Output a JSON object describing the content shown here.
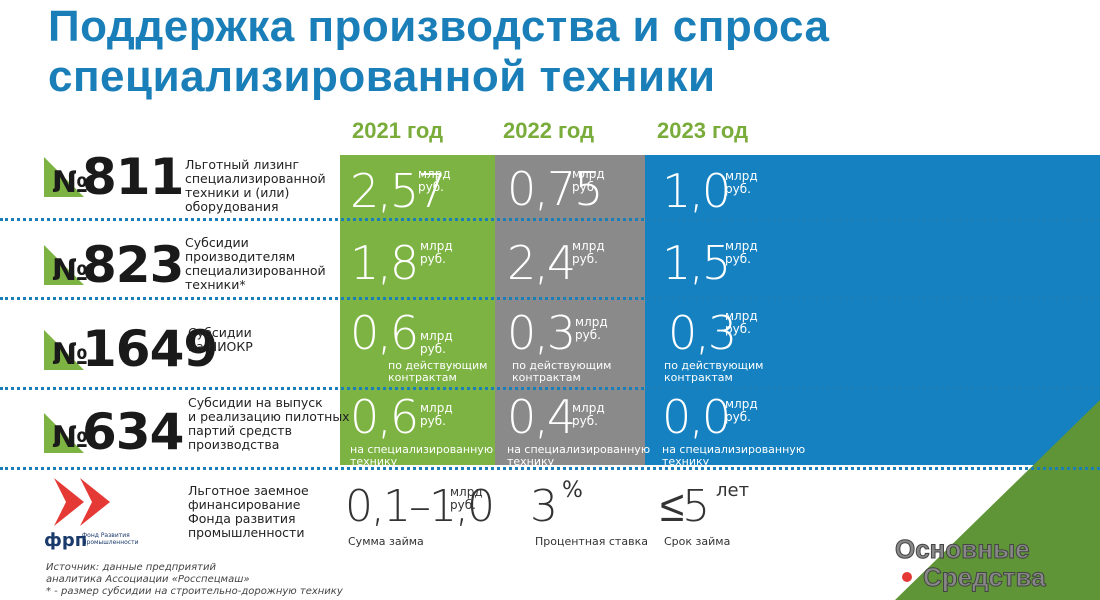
{
  "title": {
    "line1": "Поддержка производства и спроса",
    "line2": "специализированной техники"
  },
  "years": [
    "2021 год",
    "2022 год",
    "2023 год"
  ],
  "rows": [
    {
      "sign": "№",
      "num": "811",
      "desc": [
        "Льготный лизинг",
        "специализированной",
        "техники и (или)",
        "оборудования"
      ],
      "vals": [
        {
          "value": "2,57",
          "unit": "млрд руб."
        },
        {
          "value": "0,75",
          "unit": "млрд руб."
        },
        {
          "value": "1,0",
          "unit": "млрд руб."
        }
      ]
    },
    {
      "sign": "№",
      "num": "823",
      "desc": [
        "Субсидии",
        "производителям",
        "специализированной",
        "техники*"
      ],
      "vals": [
        {
          "value": "1,8",
          "unit": "млрд руб."
        },
        {
          "value": "2,4",
          "unit": "млрд руб."
        },
        {
          "value": "1,5",
          "unit": "млрд руб."
        }
      ]
    },
    {
      "sign": "№",
      "num": "1649",
      "desc": [
        "Субсидии",
        "на НИОКР"
      ],
      "vals": [
        {
          "value": "0,6",
          "unit": "млрд руб.",
          "note": [
            "по действующим",
            "контрактам"
          ]
        },
        {
          "value": "0,3",
          "unit": "млрд руб.",
          "note": [
            "по действующим",
            "контрактам"
          ]
        },
        {
          "value": "0,3",
          "unit": "млрд руб.",
          "note": [
            "по действующим",
            "контрактам"
          ]
        }
      ]
    },
    {
      "sign": "№",
      "num": "634",
      "desc": [
        "Субсидии на выпуск",
        "и реализацию пилотных",
        "партий средств",
        "производства"
      ],
      "vals": [
        {
          "value": "0,6",
          "unit": "млрд руб.",
          "note": [
            "на специализированную",
            "технику"
          ]
        },
        {
          "value": "0,4",
          "unit": "млрд руб.",
          "note": [
            "на специализированную",
            "технику"
          ]
        },
        {
          "value": "0,0",
          "unit": "млрд руб.",
          "note": [
            "на специализированную",
            "технику"
          ]
        }
      ]
    }
  ],
  "frp": {
    "logo_text": "фрп",
    "logo_small": "Фонд Развития Промышленности",
    "desc": [
      "Льготное заемное",
      "финансирование",
      "Фонда развития",
      "промышленности"
    ],
    "items": [
      {
        "value": "0,1–1,0",
        "unit": "млрд руб.",
        "label": "Сумма займа"
      },
      {
        "value": "3",
        "unit": "%",
        "label": "Процентная ставка"
      },
      {
        "value": "≤5",
        "unit": "лет",
        "label": "Срок займа"
      }
    ]
  },
  "source": [
    "Источник: данные предприятий",
    "аналитика Ассоциации «Росспецмаш»",
    "* - размер субсидии на строительно-дорожную технику"
  ],
  "brand": {
    "line1": "Основные",
    "line2": "Средства"
  },
  "colors": {
    "green": "#7cb342",
    "gray": "#8a8a8a",
    "blue": "#1581c0",
    "title": "#1a7fb8"
  }
}
